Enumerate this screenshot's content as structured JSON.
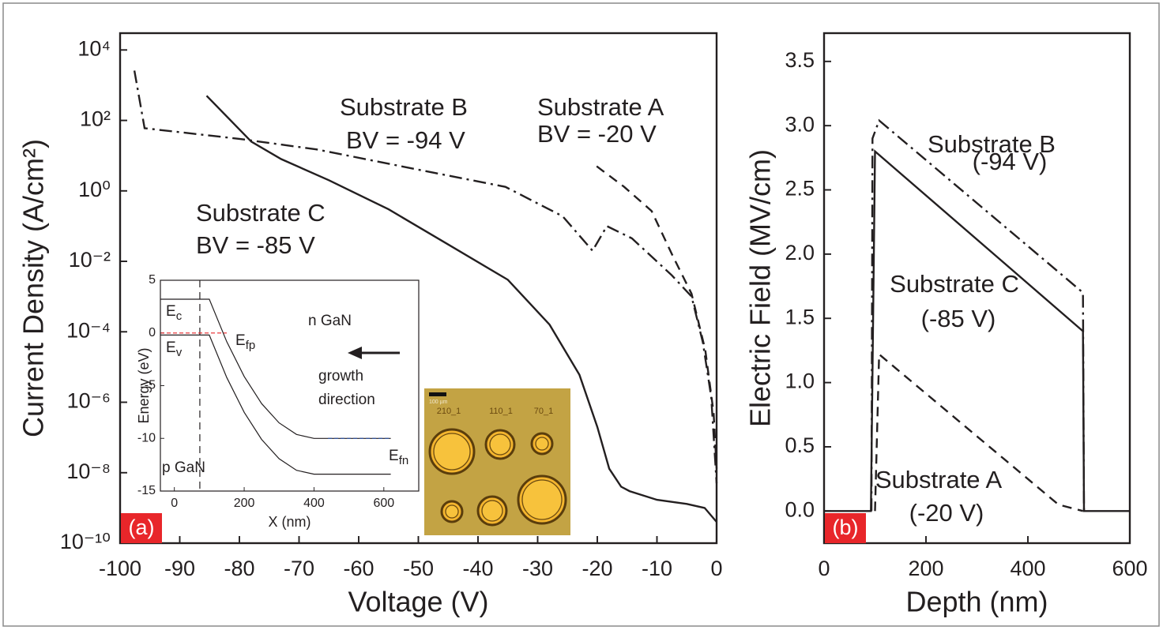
{
  "chart_data": [
    {
      "type": "line",
      "panel": "(a)",
      "xlabel": "Voltage (V)",
      "ylabel": "Current Density (A/cm²)",
      "log_y": true,
      "xlim": [
        -100,
        0
      ],
      "xticks": [
        -100,
        -90,
        -80,
        -70,
        -60,
        -50,
        -40,
        -30,
        -20,
        -10,
        0
      ],
      "ylim": [
        1e-10,
        30000
      ],
      "yticks": [
        {
          "value": 1e-10,
          "label": "10⁻¹⁰"
        },
        {
          "value": 1e-08,
          "label": "10⁻⁸"
        },
        {
          "value": 1e-06,
          "label": "10⁻⁶"
        },
        {
          "value": 0.0001,
          "label": "10⁻⁴"
        },
        {
          "value": 0.01,
          "label": "10⁻²"
        },
        {
          "value": 1,
          "label": "10⁰"
        },
        {
          "value": 100,
          "label": "10²"
        },
        {
          "value": 10000,
          "label": "10⁴"
        }
      ],
      "series": [
        {
          "name": "Substrate A",
          "label": "BV = -20 V",
          "dash": "dashed",
          "color": "#231f20",
          "x": [
            -20.1,
            -15.5,
            -10.9,
            -7.5,
            -4.2,
            -1.9,
            -0.5,
            0
          ],
          "values": [
            5,
            1.3,
            0.27,
            0.016,
            0.0012,
            3e-05,
            5e-07,
            1.3e-08
          ]
        },
        {
          "name": "Substrate B",
          "label": "BV = -94 V",
          "dash": "dashdot",
          "color": "#231f20",
          "x": [
            -97.6,
            -95.9,
            -80,
            -67,
            -50,
            -35.4,
            -25.8,
            -20.8,
            -18.4,
            -14.2,
            -7.5,
            -4.2,
            -2.3,
            -0.9,
            0
          ],
          "values": [
            2600,
            60,
            30,
            15,
            4,
            1.3,
            0.19,
            0.02,
            0.1,
            0.045,
            0.004,
            0.001,
            5e-05,
            1.4e-06,
            5e-09
          ]
        },
        {
          "name": "Substrate C",
          "label": "BV = -85 V",
          "dash": "solid",
          "color": "#231f20",
          "x": [
            -85.5,
            -78,
            -73,
            -65,
            -55,
            -45,
            -35,
            -28,
            -23,
            -20,
            -18,
            -16,
            -14.6,
            -10,
            -5,
            -2,
            0
          ],
          "values": [
            500,
            25,
            8,
            2,
            0.3,
            0.03,
            0.003,
            0.00016,
            6e-06,
            2e-07,
            1.3e-08,
            4e-09,
            3e-09,
            1.7e-09,
            1.3e-09,
            1e-09,
            4e-10
          ]
        }
      ]
    },
    {
      "type": "line",
      "xlabel": "X (nm)",
      "ylabel": "Energy (eV)",
      "xlim": [
        -40,
        700
      ],
      "xticks": [
        0,
        200,
        400,
        600
      ],
      "ylim": [
        -15,
        5
      ],
      "yticks": [
        5,
        0,
        -5,
        -10,
        -15
      ],
      "vlines": [
        73
      ],
      "annotations": [
        "n GaN",
        "p GaN",
        "growth",
        "direction"
      ],
      "series": [
        {
          "label": {
            "text": "E",
            "sub": "c"
          },
          "dash": "solid",
          "color": "#231f20",
          "x": [
            -40,
            100,
            150,
            200,
            250,
            300,
            350,
            400,
            620
          ],
          "values": [
            3.2,
            3.2,
            -0.83,
            -4.13,
            -6.7,
            -8.53,
            -9.63,
            -10,
            -10
          ]
        },
        {
          "label": {
            "text": "E",
            "sub": "v"
          },
          "dash": "solid",
          "color": "#231f20",
          "x": [
            -40,
            100,
            150,
            200,
            250,
            300,
            350,
            400,
            620
          ],
          "values": [
            -0.2,
            -0.2,
            -4.23,
            -7.53,
            -10.1,
            -11.93,
            -13.03,
            -13.4,
            -13.4
          ]
        },
        {
          "label": {
            "text": "E",
            "sub": "fp"
          },
          "dash": "fine",
          "color": "#e8262a",
          "x": [
            -40,
            150
          ],
          "values": [
            0,
            0
          ]
        },
        {
          "label": {
            "text": "E",
            "sub": "fn"
          },
          "dash": "fine",
          "color": "#2b4fa0",
          "x": [
            440,
            620
          ],
          "values": [
            -10,
            -10
          ]
        }
      ]
    },
    {
      "type": "line",
      "panel": "(b)",
      "xlabel": "Depth (nm)",
      "ylabel": "Electric Field (MV/cm)",
      "xlim": [
        0,
        600
      ],
      "xticks": [
        0,
        200,
        400,
        600
      ],
      "ylim": [
        -0.25,
        3.72
      ],
      "yticks": [
        {
          "value": 0,
          "label": "0.0"
        },
        0.5,
        {
          "value": 1,
          "label": "1.0"
        },
        1.5,
        {
          "value": 2,
          "label": "2.0"
        },
        2.5,
        {
          "value": 3,
          "label": "3.0"
        },
        3.5
      ],
      "series": [
        {
          "name": "Substrate A",
          "label": "(-20 V)",
          "dash": "dashed",
          "color": "#231f20",
          "x": [
            100,
            108,
            460,
            508
          ],
          "values": [
            0,
            1.22,
            0.05,
            0
          ]
        },
        {
          "name": "Substrate B",
          "label": "(-94 V)",
          "dash": "dashdot",
          "color": "#231f20",
          "x": [
            93,
            95,
            108,
            508,
            510
          ],
          "values": [
            0,
            2.9,
            3.04,
            1.7,
            0
          ]
        },
        {
          "name": "Substrate C",
          "label": "(-85 V)",
          "dash": "solid",
          "color": "#231f20",
          "x": [
            0,
            92,
            100,
            508,
            510,
            600
          ],
          "values": [
            0,
            0,
            2.8,
            1.4,
            0,
            0
          ]
        }
      ]
    }
  ],
  "photo": {
    "labels": [
      "210_1",
      "110_1",
      "70_1",
      "100 µm"
    ]
  }
}
